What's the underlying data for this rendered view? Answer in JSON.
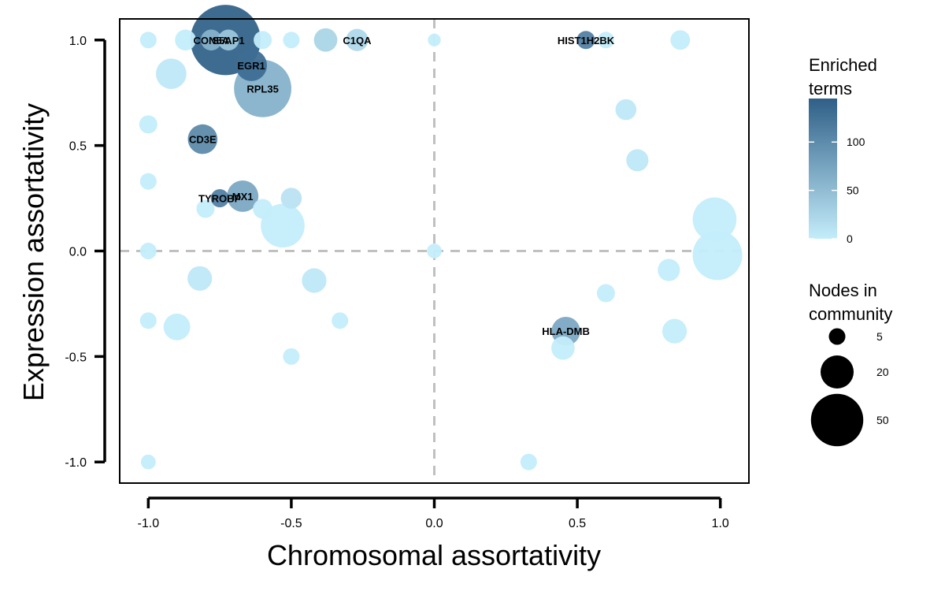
{
  "chart_data": {
    "type": "scatter",
    "xlabel": "Chromosomal assortativity",
    "ylabel": "Expression assortativity",
    "xlim": [
      -1.1,
      1.1
    ],
    "ylim": [
      -1.1,
      1.1
    ],
    "x_ticks": [
      -1.0,
      -0.5,
      0.0,
      0.5,
      1.0
    ],
    "x_tick_labels": [
      "-1.0",
      "-0.5",
      "0.0",
      "0.5",
      "1.0"
    ],
    "y_ticks": [
      -1.0,
      -0.5,
      0.0,
      0.5,
      1.0
    ],
    "y_tick_labels": [
      "-1.0",
      "-0.5",
      "0.0",
      "0.5",
      "1.0"
    ],
    "reference_lines": {
      "x": 0,
      "y": 0,
      "style": "dashed",
      "color": "#c0c0c0"
    },
    "color_scale": {
      "title": "Enriched\nterms",
      "low_color": "#c4edfb",
      "high_color": "#2f5f87",
      "min": 0,
      "max": 145,
      "ticks": [
        0,
        50,
        100
      ],
      "tick_labels": [
        "0",
        "50",
        "100"
      ]
    },
    "size_legend": {
      "title": "Nodes in\ncommunity",
      "values": [
        5,
        20,
        50
      ],
      "labels": [
        "5",
        "20",
        "50"
      ]
    },
    "points": [
      {
        "x": -0.73,
        "y": 1.0,
        "size": 90,
        "terms": 140,
        "label": ""
      },
      {
        "x": -0.78,
        "y": 1.0,
        "size": 8,
        "terms": 60,
        "label": "CON5A"
      },
      {
        "x": -0.72,
        "y": 1.0,
        "size": 8,
        "terms": 40,
        "label": "S5AP1"
      },
      {
        "x": -0.38,
        "y": 1.0,
        "size": 10,
        "terms": 25,
        "label": ""
      },
      {
        "x": -0.27,
        "y": 1.0,
        "size": 9,
        "terms": 20,
        "label": "C1QA"
      },
      {
        "x": 0.53,
        "y": 1.0,
        "size": 6,
        "terms": 110,
        "label": "HIST1H2BK"
      },
      {
        "x": -0.64,
        "y": 0.88,
        "size": 18,
        "terms": 130,
        "label": "EGR1"
      },
      {
        "x": -0.6,
        "y": 0.77,
        "size": 60,
        "terms": 60,
        "label": "RPL35"
      },
      {
        "x": -0.81,
        "y": 0.53,
        "size": 16,
        "terms": 100,
        "label": "CD3E"
      },
      {
        "x": -0.67,
        "y": 0.26,
        "size": 18,
        "terms": 70,
        "label": "MX1"
      },
      {
        "x": -0.75,
        "y": 0.25,
        "size": 6,
        "terms": 110,
        "label": "TYROBP"
      },
      {
        "x": 0.46,
        "y": -0.38,
        "size": 15,
        "terms": 70,
        "label": "HLA-DMB"
      },
      {
        "x": -1.0,
        "y": 1.0,
        "size": 5,
        "terms": 0,
        "label": ""
      },
      {
        "x": -0.87,
        "y": 1.0,
        "size": 8,
        "terms": 0,
        "label": ""
      },
      {
        "x": -0.6,
        "y": 1.0,
        "size": 6,
        "terms": 0,
        "label": ""
      },
      {
        "x": -0.5,
        "y": 1.0,
        "size": 5,
        "terms": 0,
        "label": ""
      },
      {
        "x": 0.0,
        "y": 1.0,
        "size": 3,
        "terms": 0,
        "label": ""
      },
      {
        "x": 0.6,
        "y": 1.0,
        "size": 5,
        "terms": 0,
        "label": ""
      },
      {
        "x": 0.86,
        "y": 1.0,
        "size": 7,
        "terms": 0,
        "label": ""
      },
      {
        "x": -0.92,
        "y": 0.84,
        "size": 17,
        "terms": 5,
        "label": ""
      },
      {
        "x": 0.67,
        "y": 0.67,
        "size": 8,
        "terms": 5,
        "label": ""
      },
      {
        "x": -1.0,
        "y": 0.6,
        "size": 6,
        "terms": 0,
        "label": ""
      },
      {
        "x": 0.71,
        "y": 0.43,
        "size": 9,
        "terms": 5,
        "label": ""
      },
      {
        "x": -1.0,
        "y": 0.33,
        "size": 5,
        "terms": 0,
        "label": ""
      },
      {
        "x": -0.5,
        "y": 0.25,
        "size": 8,
        "terms": 10,
        "label": ""
      },
      {
        "x": -0.6,
        "y": 0.2,
        "size": 7,
        "terms": 0,
        "label": ""
      },
      {
        "x": -0.8,
        "y": 0.2,
        "size": 6,
        "terms": 0,
        "label": ""
      },
      {
        "x": -0.53,
        "y": 0.12,
        "size": 35,
        "terms": 0,
        "label": ""
      },
      {
        "x": 0.98,
        "y": 0.15,
        "size": 35,
        "terms": 0,
        "label": ""
      },
      {
        "x": 0.99,
        "y": -0.02,
        "size": 45,
        "terms": 0,
        "label": ""
      },
      {
        "x": -1.0,
        "y": 0.0,
        "size": 5,
        "terms": 0,
        "label": ""
      },
      {
        "x": 0.0,
        "y": 0.0,
        "size": 4,
        "terms": 0,
        "label": ""
      },
      {
        "x": -0.82,
        "y": -0.13,
        "size": 11,
        "terms": 5,
        "label": ""
      },
      {
        "x": -0.42,
        "y": -0.14,
        "size": 11,
        "terms": 5,
        "label": ""
      },
      {
        "x": 0.82,
        "y": -0.09,
        "size": 9,
        "terms": 0,
        "label": ""
      },
      {
        "x": 0.6,
        "y": -0.2,
        "size": 6,
        "terms": 0,
        "label": ""
      },
      {
        "x": -1.0,
        "y": -0.33,
        "size": 5,
        "terms": 0,
        "label": ""
      },
      {
        "x": -0.9,
        "y": -0.36,
        "size": 13,
        "terms": 0,
        "label": ""
      },
      {
        "x": -0.33,
        "y": -0.33,
        "size": 5,
        "terms": 0,
        "label": ""
      },
      {
        "x": 0.84,
        "y": -0.38,
        "size": 11,
        "terms": 0,
        "label": ""
      },
      {
        "x": 0.45,
        "y": -0.46,
        "size": 10,
        "terms": 0,
        "label": ""
      },
      {
        "x": -0.5,
        "y": -0.5,
        "size": 5,
        "terms": 0,
        "label": ""
      },
      {
        "x": -1.0,
        "y": -1.0,
        "size": 4,
        "terms": 0,
        "label": ""
      },
      {
        "x": 0.33,
        "y": -1.0,
        "size": 5,
        "terms": 0,
        "label": ""
      }
    ]
  }
}
